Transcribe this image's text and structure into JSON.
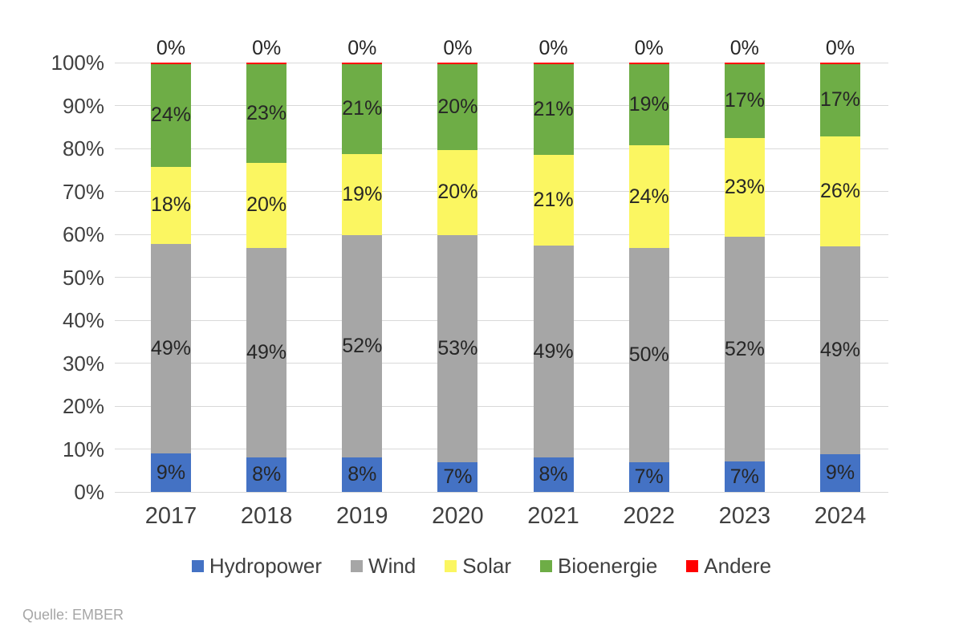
{
  "source": "Quelle: EMBER",
  "chart_data": {
    "type": "bar",
    "subtype": "stacked-100-percent",
    "categories": [
      "2017",
      "2018",
      "2019",
      "2020",
      "2021",
      "2022",
      "2023",
      "2024"
    ],
    "series": [
      {
        "name": "Hydropower",
        "color": "#4472C4",
        "values": [
          9,
          8,
          8,
          7,
          8,
          7,
          7,
          9
        ]
      },
      {
        "name": "Wind",
        "color": "#A6A6A6",
        "values": [
          49,
          49,
          52,
          53,
          49,
          50,
          52,
          49
        ]
      },
      {
        "name": "Solar",
        "color": "#FBF661",
        "values": [
          18,
          20,
          19,
          20,
          21,
          24,
          23,
          26
        ]
      },
      {
        "name": "Bioenergie",
        "color": "#6EAD46",
        "values": [
          24,
          23,
          21,
          20,
          21,
          19,
          17,
          17
        ]
      },
      {
        "name": "Andere",
        "color": "#FF0000",
        "values": [
          0,
          0,
          0,
          0,
          0,
          0,
          0,
          0
        ]
      }
    ],
    "data_label_suffix": "%",
    "y_axis": {
      "min": 0,
      "max": 100,
      "tick_step": 10,
      "ticks": [
        "0%",
        "10%",
        "20%",
        "30%",
        "40%",
        "50%",
        "60%",
        "70%",
        "80%",
        "90%",
        "100%"
      ]
    },
    "grid": true,
    "gridline_color": "#D9D9D9",
    "legend_position": "bottom",
    "title": ""
  }
}
